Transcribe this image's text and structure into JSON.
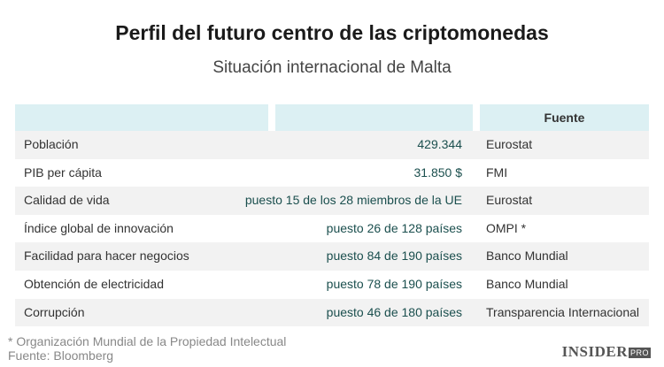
{
  "title": "Perfil del futuro centro de las criptomonedas",
  "subtitle": "Situación internacional de Malta",
  "table": {
    "headers": [
      "",
      "",
      "Fuente"
    ],
    "rows": [
      {
        "label": "Población",
        "value": "429.344",
        "source": "Eurostat"
      },
      {
        "label": "PIB per cápita",
        "value": "31.850 $",
        "source": "FMI"
      },
      {
        "label": "Calidad de vida",
        "value": "puesto 15 de los 28 miembros de la UE",
        "source": "Eurostat"
      },
      {
        "label": "Índice global de innovación",
        "value": "puesto 26 de 128 países",
        "source": "OMPI *"
      },
      {
        "label": "Facilidad para hacer negocios",
        "value": "puesto 84 de 190 países",
        "source": "Banco Mundial"
      },
      {
        "label": "Obtención de electricidad",
        "value": "puesto 78 de 190 países",
        "source": "Banco Mundial"
      },
      {
        "label": "Corrupción",
        "value": "puesto 46 de 180 países",
        "source": "Transparencia Internacional"
      }
    ]
  },
  "footnote": {
    "note": "* Organización Mundial de la Propiedad Intelectual",
    "source": "Fuente: Bloomberg"
  },
  "logo": {
    "main": "INSIDER",
    "pro": "PRO"
  }
}
